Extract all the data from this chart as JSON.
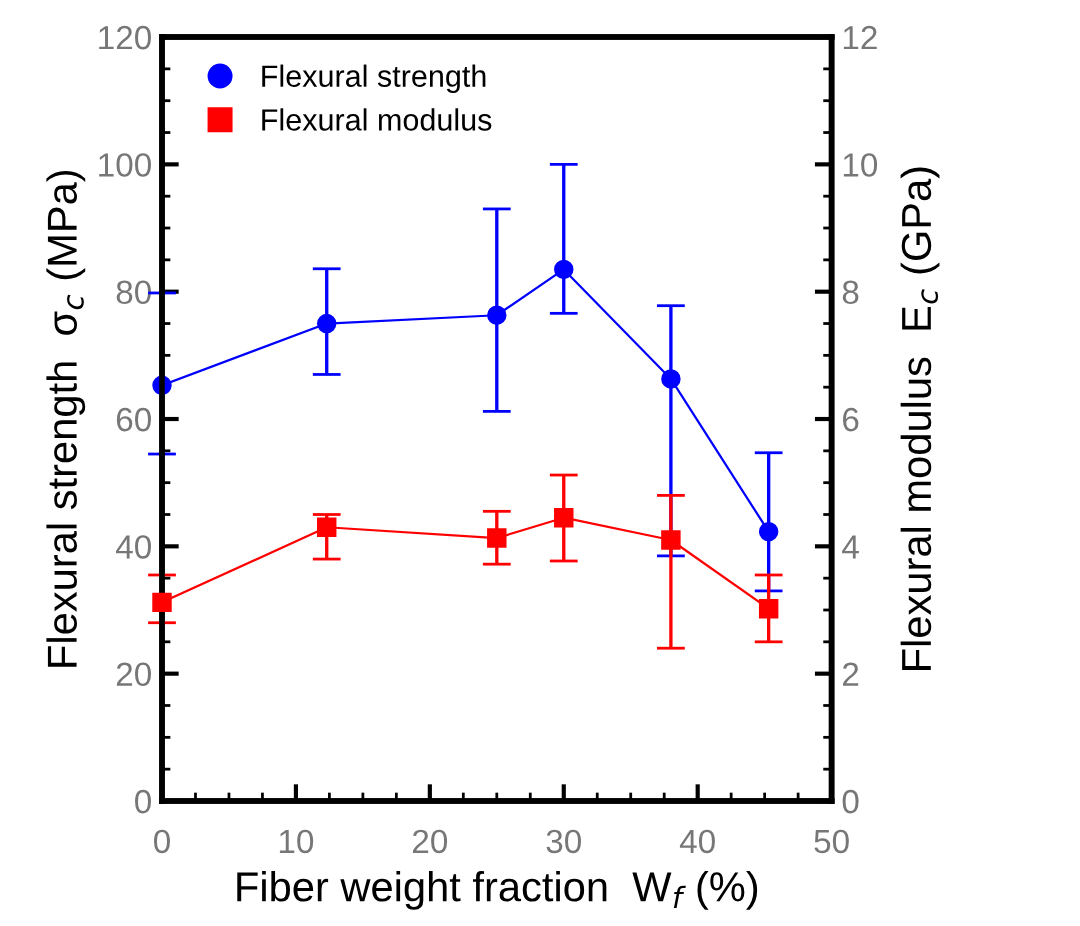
{
  "chart_data": {
    "type": "line",
    "xlabel": "Fiber weight fraction  W$_{f}$ (%)",
    "ylabel": "Flexural strength  σ$_{c}$ (MPa)",
    "y2label": "Flexural modulus  E$_{c}$ (GPa)",
    "x": [
      0,
      12.3,
      25,
      30,
      38,
      45.3
    ],
    "series": [
      {
        "name": "Flexural strength",
        "color": "#0000ff",
        "marker": "circle",
        "values": [
          65.3,
          75,
          76.3,
          83.5,
          66.3,
          42.3
        ],
        "errors": [
          [
            54.5,
            79.8
          ],
          [
            67,
            83.6
          ],
          [
            61.2,
            93
          ],
          [
            76.6,
            100
          ],
          [
            38.5,
            77.8
          ],
          [
            33,
            54.7
          ]
        ]
      },
      {
        "name": "Flexural modulus",
        "color": "#ff0000",
        "marker": "square",
        "axis": "y2",
        "values": [
          3.12,
          4.3,
          4.13,
          4.45,
          4.1,
          3.02
        ],
        "errors": [
          [
            2.8,
            3.55
          ],
          [
            3.8,
            4.5
          ],
          [
            3.72,
            4.55
          ],
          [
            3.77,
            5.12
          ],
          [
            2.4,
            4.8
          ],
          [
            2.5,
            3.55
          ]
        ]
      }
    ],
    "xlim": [
      0,
      50
    ],
    "xticks": [
      0,
      10,
      20,
      30,
      40,
      50
    ],
    "ylim": [
      0,
      120
    ],
    "yticks": [
      0,
      20,
      40,
      60,
      80,
      100,
      120
    ],
    "y2lim": [
      0,
      12
    ],
    "y2ticks": [
      0,
      2,
      4,
      6,
      8,
      10,
      12
    ],
    "grid": false,
    "legend": "top left",
    "line_style": "solid"
  }
}
